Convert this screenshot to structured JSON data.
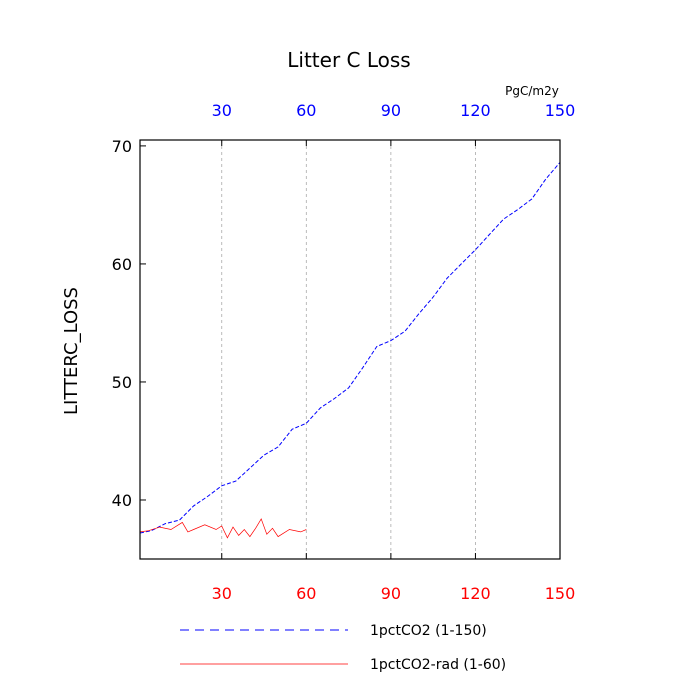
{
  "chart_data": {
    "type": "line",
    "title": "Litter C Loss",
    "ylabel": "LITTERC_LOSS",
    "xlabel": "",
    "top_axis_units": "PgC/m2y",
    "xlim": [
      1,
      150
    ],
    "ylim": [
      35,
      70.5
    ],
    "xticks": [
      30,
      60,
      90,
      120,
      150
    ],
    "yticks": [
      40,
      50,
      60,
      70
    ],
    "grid": "vertical dashed at x ticks",
    "colors": {
      "bottom_axis": "#ff0000",
      "top_axis": "#0000ff"
    },
    "series": [
      {
        "name": "1pctCO2 (1-150)",
        "color": "#0000ff",
        "style": "dashed",
        "x": [
          1,
          5,
          10,
          15,
          20,
          25,
          30,
          35,
          40,
          45,
          50,
          55,
          60,
          65,
          70,
          75,
          80,
          85,
          90,
          95,
          100,
          105,
          110,
          115,
          120,
          125,
          130,
          135,
          140,
          145,
          150
        ],
        "y": [
          37.2,
          37.4,
          38.0,
          38.3,
          39.5,
          40.3,
          41.2,
          41.6,
          42.7,
          43.8,
          44.5,
          46.0,
          46.5,
          47.8,
          48.6,
          49.5,
          51.2,
          53.0,
          53.5,
          54.3,
          55.8,
          57.2,
          58.8,
          60.0,
          61.2,
          62.5,
          63.8,
          64.6,
          65.5,
          67.2,
          68.6
        ]
      },
      {
        "name": "1pctCO2-rad (1-60)",
        "color": "#ff0000",
        "style": "solid",
        "x": [
          1,
          4,
          8,
          12,
          16,
          18,
          20,
          24,
          28,
          30,
          32,
          34,
          36,
          38,
          40,
          42,
          44,
          46,
          48,
          50,
          54,
          58,
          60
        ],
        "y": [
          37.3,
          37.4,
          37.7,
          37.5,
          38.1,
          37.3,
          37.5,
          37.9,
          37.5,
          37.8,
          36.8,
          37.7,
          37.0,
          37.5,
          36.9,
          37.6,
          38.4,
          37.1,
          37.6,
          36.9,
          37.5,
          37.3,
          37.5
        ]
      }
    ]
  },
  "legend": [
    {
      "label": "1pctCO2 (1-150)"
    },
    {
      "label": "1pctCO2-rad (1-60)"
    }
  ]
}
